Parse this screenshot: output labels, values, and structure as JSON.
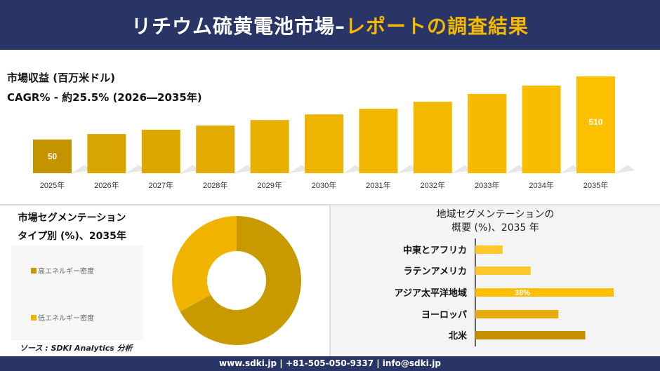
{
  "header": {
    "title_main": "リチウム硫黄電池市場",
    "title_sep": "–",
    "title_accent": "レポートの調査結果"
  },
  "colors": {
    "navy": "#283566",
    "bar_dark": "#c49400",
    "bar_mid": "#e0ad00",
    "bar_light": "#fbc10a",
    "donut_high": "#c99a00",
    "donut_low": "#f0b400"
  },
  "chart_data": [
    {
      "type": "bar",
      "title": "市場収益 (百万米ドル)",
      "subtitle": "CAGR% - 約25.5% (2026―2035年)",
      "categories": [
        "2025年",
        "2026年",
        "2027年",
        "2028年",
        "2029年",
        "2030年",
        "2031年",
        "2032年",
        "2033年",
        "2034年",
        "2035年"
      ],
      "values": [
        50,
        90,
        121,
        152,
        192,
        233,
        274,
        325,
        382,
        443,
        510
      ],
      "data_labels": {
        "0": "50",
        "10": "510"
      },
      "grid": false
    },
    {
      "type": "pie",
      "title": "市場セグメンテーション",
      "subtitle": "タイプ別 (%)、2035年",
      "slices": [
        {
          "label": "高エネルギー密度",
          "value": 67,
          "color": "#c99a00"
        },
        {
          "label": "低エネルギー密度",
          "value": 33,
          "color": "#f0b400"
        }
      ],
      "legend": "left"
    },
    {
      "type": "bar",
      "orientation": "horizontal",
      "title": "地域セグメンテーションの",
      "subtitle": "概要 (%)、2035 年",
      "categories": [
        "中東とアフリカ",
        "ラテンアメリカ",
        "アジア太平洋地域",
        "ヨーロッパ",
        "北米"
      ],
      "values": [
        7.5,
        15.2,
        38,
        22.8,
        30.2
      ],
      "colors": [
        "#fcc72c",
        "#fcc72c",
        "#fcbf00",
        "#e5ab10",
        "#c49000"
      ],
      "data_labels": {
        "2": "38%"
      }
    }
  ],
  "source": "ソース : SDKI Analytics 分析",
  "footer": "www.sdki.jp | +81-505-050-9337 | info@sdki.jp"
}
